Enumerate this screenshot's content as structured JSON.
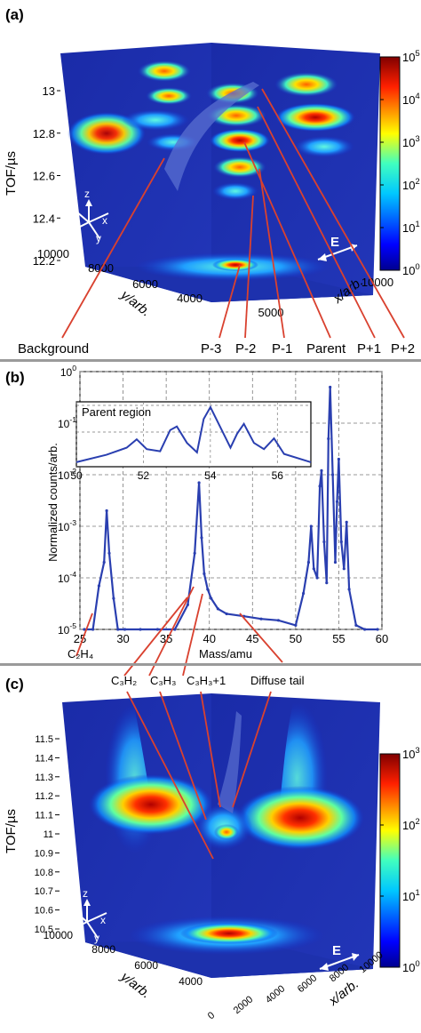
{
  "chart_data": [
    {
      "panel": "(a)",
      "type": "heatmap",
      "zlabel": "TOF/µs",
      "xlabel": "x/arb.",
      "ylabel": "y/arb.",
      "z_ticks": [
        "12.2",
        "12.4",
        "12.6",
        "12.8",
        "13"
      ],
      "y_ticks": [
        "4000",
        "6000",
        "8000",
        "10000"
      ],
      "x_ticks": [
        "5000",
        "10000"
      ],
      "colorbar": {
        "scale": "log",
        "ticks": [
          "10^0",
          "10^1",
          "10^2",
          "10^3",
          "10^4",
          "10^5"
        ],
        "min": 1,
        "max": 100000
      },
      "field_label": "E",
      "axes_labels": [
        "z",
        "x",
        "y"
      ],
      "annotations": [
        "Background",
        "P-3",
        "P-2",
        "P-1",
        "Parent",
        "P+1",
        "P+2"
      ]
    },
    {
      "panel": "(b)",
      "type": "line",
      "xlabel": "Mass/amu",
      "ylabel": "Normalized counts/arb.",
      "xlim": [
        25,
        60
      ],
      "ylim": [
        1e-05,
        1
      ],
      "yscale": "log",
      "x_ticks": [
        "25",
        "30",
        "35",
        "40",
        "45",
        "50",
        "55",
        "60"
      ],
      "y_ticks": [
        "10^-5",
        "10^-4",
        "10^-3",
        "10^-2",
        "10^-1",
        "10^0"
      ],
      "grid": true,
      "series": [
        {
          "x": [
            25.5,
            26.5,
            27.2,
            27.8,
            28.1,
            28.4,
            28.9,
            29.4,
            30.2,
            32,
            34,
            36,
            37.5,
            38.3,
            38.8,
            39.1,
            39.4,
            39.8,
            40.2,
            41,
            42,
            44,
            46,
            48,
            50,
            50.9,
            51.5,
            51.8,
            52.1,
            52.5,
            52.8,
            53.0,
            53.3,
            53.6,
            53.8,
            54.0,
            54.3,
            54.6,
            54.8,
            55.0,
            55.3,
            55.6,
            55.9,
            56.2,
            57,
            58,
            59.5
          ],
          "values": [
            1e-05,
            1e-05,
            7e-05,
            0.0002,
            0.002,
            0.0003,
            4e-05,
            1e-05,
            1e-05,
            1e-05,
            1e-05,
            1e-05,
            3e-05,
            0.0003,
            0.007,
            0.0006,
            0.00012,
            6e-05,
            4e-05,
            2.5e-05,
            2e-05,
            1.8e-05,
            1.6e-05,
            1.5e-05,
            1.2e-05,
            5e-05,
            0.0002,
            0.001,
            0.00015,
            0.0001,
            0.006,
            0.012,
            0.0005,
            8e-05,
            0.05,
            0.5,
            0.01,
            0.0002,
            0.003,
            0.02,
            0.0005,
            0.00015,
            0.0012,
            6e-05,
            1.2e-05,
            1e-05,
            1e-05
          ]
        }
      ],
      "inset": {
        "title": "Parent region",
        "xlim": [
          50,
          57
        ],
        "x_ticks": [
          "50",
          "52",
          "54",
          "56"
        ],
        "y_ticks": [
          "10^0",
          "10^-1"
        ]
      },
      "annotations": [
        "C2H4",
        "C3H2",
        "C3H3",
        "C3H3+1",
        "Diffuse tail"
      ]
    },
    {
      "panel": "(c)",
      "type": "heatmap",
      "zlabel": "TOF/µs",
      "xlabel": "x/arb.",
      "ylabel": "y/arb.",
      "z_ticks": [
        "10.5",
        "10.6",
        "10.7",
        "10.8",
        "10.9",
        "11",
        "11.1",
        "11.2",
        "11.3",
        "11.4",
        "11.5"
      ],
      "y_ticks": [
        "4000",
        "6000",
        "8000",
        "10000"
      ],
      "x_ticks": [
        "0",
        "2000",
        "4000",
        "6000",
        "8000",
        "10000"
      ],
      "colorbar": {
        "scale": "log",
        "ticks": [
          "10^0",
          "10^1",
          "10^2",
          "10^3"
        ],
        "min": 1,
        "max": 1000
      },
      "field_label": "E",
      "axes_labels": [
        "z",
        "x",
        "y"
      ]
    }
  ],
  "labels": {
    "panel_a": "(a)",
    "panel_b": "(b)",
    "panel_c": "(c)",
    "tof_a": "TOF/µs",
    "tof_c": "TOF/µs",
    "y_arb_a": "y/arb.",
    "x_arb_a": "x/arb.",
    "y_arb_c": "y/arb.",
    "x_arb_c": "x/arb.",
    "e_a": "E",
    "e_c": "E",
    "axis_z": "z",
    "axis_x": "x",
    "axis_y": "y",
    "background": "Background",
    "p3": "P-3",
    "p2": "P-2",
    "p1": "P-1",
    "parent": "Parent",
    "pp1": "P+1",
    "pp2": "P+2",
    "ylabel_b": "Normalized counts/arb.",
    "xlabel_b": "Mass/amu",
    "inset_title": "Parent region",
    "c2h4": "C₂H₄",
    "c3h2": "C₃H₂",
    "c3h3": "C₃H₃",
    "c3h3p1": "C₃H₃+1",
    "diffuse_tail": "Diffuse tail"
  },
  "colors": {
    "trace": "#2a3fb0",
    "pointer": "#d9412f",
    "cube": "#1c2fa6",
    "grid": "#7a7a7a",
    "separator": "#9a9a9a"
  }
}
